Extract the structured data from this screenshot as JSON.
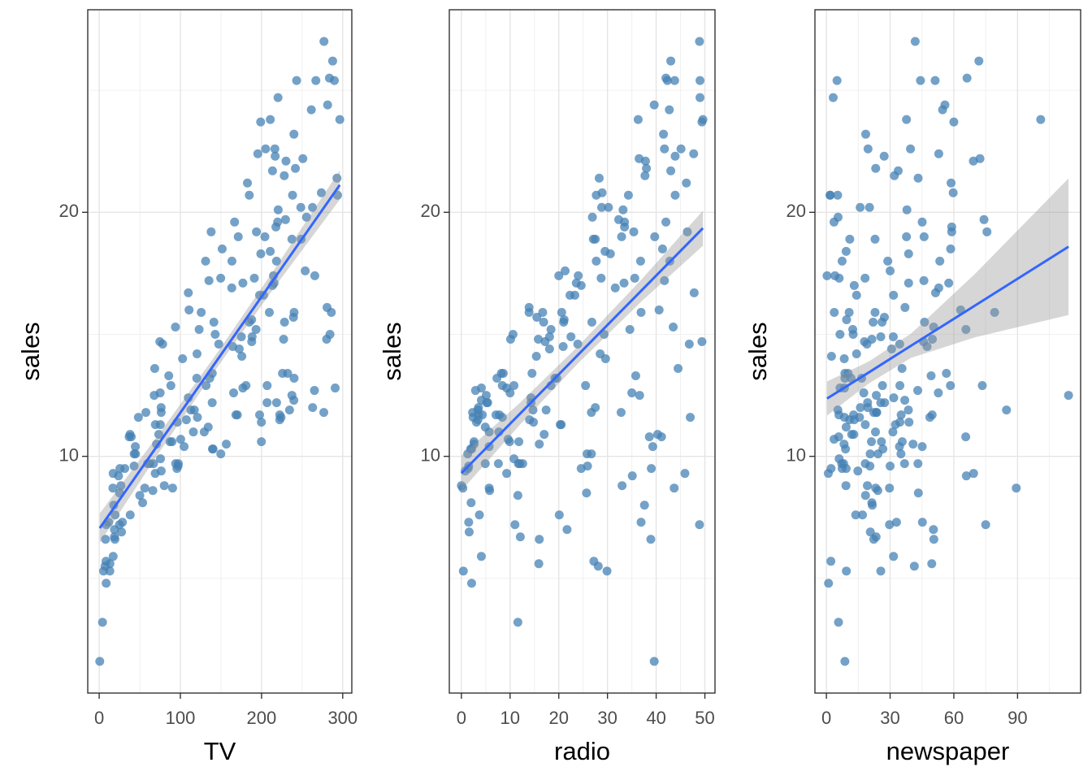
{
  "chart_data": [
    {
      "type": "scatter",
      "xlabel": "TV",
      "ylabel": "sales",
      "color": "#4682b4",
      "line_color": "#3366ff",
      "band_color": "#999999",
      "grid": true,
      "xlim": [
        -14.1,
        311.2
      ],
      "ylim": [
        0.3,
        28.3
      ],
      "xticks": [
        0,
        100,
        200,
        300
      ],
      "yticks": [
        10,
        20
      ],
      "xminorticks": [
        50,
        150,
        250
      ],
      "yminorticks": [
        5,
        15,
        25
      ],
      "x": [
        230.1,
        44.5,
        17.2,
        151.5,
        180.8,
        8.7,
        57.5,
        120.2,
        8.6,
        199.8,
        66.1,
        214.7,
        23.8,
        97.5,
        204.1,
        195.4,
        67.8,
        281.4,
        69.2,
        147.3,
        218.4,
        237.4,
        13.2,
        228.3,
        62.3,
        262.9,
        142.9,
        240.1,
        248.8,
        70.6,
        292.9,
        112.9,
        97.2,
        265.6,
        95.7,
        290.7,
        266.9,
        74.7,
        43.1,
        228,
        202.5,
        177,
        293.6,
        206.9,
        25.1,
        175.1,
        89.7,
        239.9,
        227.2,
        66.9,
        199.8,
        100.4,
        216.4,
        182.6,
        262.7,
        198.9,
        7.3,
        136.2,
        210.8,
        210.7,
        53.5,
        261.3,
        239.3,
        102.7,
        131.1,
        69,
        31.5,
        139.3,
        237.4,
        216.8,
        199.1,
        109.8,
        26.8,
        129.4,
        213.4,
        16.9,
        27.5,
        120.5,
        5.4,
        116,
        76.4,
        239.8,
        75.3,
        68.4,
        213.5,
        193.2,
        76.3,
        110.7,
        88.3,
        109.8,
        134.3,
        28.6,
        217.7,
        250.9,
        107.4,
        163.3,
        197.6,
        184.9,
        289.7,
        135.2,
        222.4,
        296.4,
        280.2,
        187.9,
        238.2,
        137.9,
        25,
        90.4,
        13.1,
        255.4,
        225.8,
        241.7,
        175.7,
        209.6,
        78.2,
        75.1,
        139.2,
        76.4,
        125.7,
        19.4,
        141.3,
        18.8,
        224,
        123.1,
        229.5,
        87.2,
        7.8,
        80.2,
        220.3,
        59.6,
        0.7,
        265.2,
        8.4,
        219.8,
        36.9,
        48.3,
        25.6,
        273.7,
        43,
        184.9,
        73.4,
        193.7,
        220.5,
        104.6,
        96.2,
        140.3,
        240.1,
        243.2,
        38,
        44.7,
        280.7,
        121,
        197.6,
        171.3,
        187.8,
        4.1,
        93.9,
        149.8,
        11.7,
        131.7,
        172.5,
        85.7,
        188.4,
        163.5,
        117.2,
        234.5,
        17.9,
        206.8,
        215.4,
        284.3,
        50,
        164.5,
        19.6,
        168.4,
        222.4,
        276.9,
        248.4,
        170.2,
        276.7,
        165.6,
        156.6,
        218.5,
        56.2,
        287.6,
        253.8,
        205,
        139.5,
        191.1,
        286,
        18.7,
        39.5,
        75.5,
        17.2,
        166.8,
        149.7,
        38.2,
        94.2,
        177,
        283.6,
        232.1
      ],
      "values": [
        22.1,
        10.4,
        9.3,
        18.5,
        12.9,
        7.2,
        11.8,
        13.2,
        4.8,
        10.6,
        8.6,
        17.4,
        9.2,
        9.7,
        19,
        22.4,
        12.5,
        24.4,
        11.3,
        14.6,
        18,
        12.5,
        5.6,
        15.5,
        9.7,
        12,
        15,
        15.9,
        18.9,
        10.5,
        21.4,
        11.9,
        9.6,
        17.4,
        9.5,
        12.8,
        25.4,
        14.7,
        10.1,
        21.5,
        16.6,
        17.1,
        20.7,
        12.9,
        8.5,
        14.9,
        10.6,
        23.2,
        14.8,
        9.7,
        11.4,
        10.7,
        22.6,
        21.2,
        20.2,
        23.7,
        5.5,
        13.2,
        23.8,
        18.4,
        8.1,
        24.2,
        15.7,
        14,
        18,
        9.3,
        9.5,
        13.4,
        18.9,
        22.3,
        18.3,
        12.4,
        8.8,
        11,
        17,
        8.7,
        6.9,
        14.2,
        5.3,
        11,
        11.8,
        12.3,
        11.3,
        13.6,
        21.7,
        15.2,
        12,
        16,
        12.9,
        16.7,
        11.2,
        7.3,
        19.4,
        22.2,
        11.5,
        16.9,
        11.7,
        15.5,
        25.4,
        17.2,
        11.7,
        23.8,
        14.8,
        14.7,
        20.7,
        19.2,
        7.2,
        8.7,
        5.3,
        19.8,
        13.4,
        21.8,
        14.1,
        15.9,
        14.6,
        12.6,
        12.2,
        9.4,
        15.9,
        6.6,
        15.5,
        7,
        11.6,
        15.2,
        19.7,
        10.6,
        6.6,
        8.8,
        24.7,
        9.7,
        1.6,
        12.7,
        5.7,
        19.6,
        10.8,
        11.6,
        9.5,
        20.8,
        9.6,
        20.7,
        10.9,
        19.2,
        20.1,
        10.4,
        11.4,
        10.3,
        13.2,
        25.4,
        10.9,
        10.1,
        16.1,
        11.6,
        16.6,
        19,
        15.6,
        3.2,
        15.3,
        10.1,
        7.3,
        12.9,
        14.4,
        13.3,
        14.9,
        18,
        11.9,
        11.9,
        8,
        12.2,
        17.1,
        15,
        8.4,
        14.5,
        7.6,
        11.7,
        11.5,
        27,
        20.2,
        11.7,
        11.8,
        12.6,
        10.5,
        12.2,
        8.7,
        26.2,
        17.6,
        22.6,
        10.3,
        17.3,
        15.9,
        6.7,
        10.8,
        9.9,
        5.9,
        19.6,
        17.3,
        7.6,
        9.7,
        12.8,
        25.5,
        13.4
      ],
      "fit": {
        "x": [
          0.7,
          75,
          147,
          220,
          296.4
        ],
        "values": [
          7.06,
          10.6,
          14.02,
          17.49,
          21.12
        ],
        "lower": [
          6.46,
          10.22,
          13.72,
          17.11,
          20.52
        ],
        "upper": [
          7.66,
          10.98,
          14.32,
          17.87,
          21.72
        ]
      }
    },
    {
      "type": "scatter",
      "xlabel": "radio",
      "ylabel": "sales",
      "color": "#4682b4",
      "line_color": "#3366ff",
      "band_color": "#999999",
      "grid": true,
      "xlim": [
        -2.48,
        52.08
      ],
      "ylim": [
        0.3,
        28.3
      ],
      "xticks": [
        0,
        10,
        20,
        30,
        40,
        50
      ],
      "yticks": [
        10,
        20
      ],
      "xminorticks": [
        5,
        15,
        25,
        35,
        45
      ],
      "yminorticks": [
        5,
        15,
        25
      ],
      "x": [
        37.8,
        39.3,
        45.9,
        41.3,
        10.8,
        48.9,
        32.8,
        19.6,
        2.1,
        2.6,
        5.8,
        24,
        35.1,
        7.6,
        32.9,
        47.7,
        36.6,
        39.6,
        20.5,
        23.9,
        27.7,
        5.1,
        15.9,
        16.9,
        12.6,
        3.5,
        29.3,
        16.7,
        27.1,
        16,
        28.3,
        17.4,
        1.5,
        20,
        1.4,
        4.1,
        43.8,
        49.4,
        26.7,
        37.7,
        22.3,
        33.4,
        27.7,
        8.4,
        25.7,
        22.5,
        9.9,
        41.5,
        15.8,
        11.7,
        3.1,
        9.6,
        41.7,
        46.2,
        28.8,
        49.4,
        28.1,
        19.2,
        49.6,
        29.5,
        2,
        42.7,
        15.5,
        29.6,
        42.8,
        9.3,
        24.6,
        14.5,
        27.5,
        43.9,
        30.6,
        14.3,
        33,
        5.7,
        24.6,
        43.7,
        1.6,
        28.5,
        29.9,
        7.7,
        26.7,
        4.1,
        20.3,
        44.5,
        43,
        18.4,
        27.5,
        40.6,
        25.5,
        47.8,
        4.9,
        1.5,
        33.5,
        36.5,
        14,
        31.6,
        3.5,
        21,
        42.3,
        41.7,
        4.3,
        36.3,
        10.1,
        17.2,
        34.3,
        46.4,
        11,
        0.3,
        0.4,
        26.9,
        8.2,
        38,
        15.4,
        20.6,
        46.8,
        35,
        14.3,
        0.8,
        36.9,
        16,
        26.8,
        21.7,
        2.4,
        34.6,
        32.3,
        11.8,
        38.9,
        0,
        49,
        12,
        39.6,
        2.9,
        27.2,
        33.5,
        38.6,
        47,
        39,
        28.9,
        25.9,
        43.9,
        17,
        35.4,
        33.2,
        5.7,
        14.8,
        1.9,
        7.3,
        49,
        40.3,
        25.8,
        13.9,
        8.4,
        23.3,
        39.7,
        21.1,
        11.6,
        43.5,
        1.3,
        36.9,
        18.4,
        18.1,
        35.8,
        18.1,
        36.8,
        14.7,
        3.4,
        37.6,
        5.2,
        23.6,
        10.6,
        11.6,
        20.9,
        20.1,
        7.1,
        3.4,
        48.9,
        30.2,
        7.8,
        2.3,
        10,
        2.6,
        5.4,
        5.7,
        43,
        21.3,
        45.1,
        2.1,
        28.7,
        13.9,
        12.1,
        41.1,
        10.8,
        4.1,
        42,
        35.6,
        3.7,
        4.9,
        9.3,
        42,
        8.6
      ],
      "values": [
        22.1,
        10.4,
        9.3,
        18.5,
        12.9,
        7.2,
        11.8,
        13.2,
        4.8,
        10.6,
        8.6,
        17.4,
        9.2,
        9.7,
        19,
        22.4,
        12.5,
        24.4,
        11.3,
        14.6,
        18,
        12.5,
        5.6,
        15.5,
        9.7,
        12,
        15,
        15.9,
        18.9,
        10.5,
        21.4,
        11.9,
        9.6,
        17.4,
        9.5,
        12.8,
        25.4,
        14.7,
        10.1,
        21.5,
        16.6,
        17.1,
        20.7,
        12.9,
        8.5,
        14.9,
        10.6,
        23.2,
        14.8,
        9.7,
        11.4,
        10.7,
        22.6,
        21.2,
        20.2,
        23.7,
        5.5,
        13.2,
        23.8,
        18.4,
        8.1,
        24.2,
        15.7,
        14,
        18,
        9.3,
        9.5,
        13.4,
        18.9,
        22.3,
        18.3,
        12.4,
        8.8,
        11,
        17,
        8.7,
        6.9,
        14.2,
        5.3,
        11,
        11.8,
        12.3,
        11.3,
        13.6,
        21.7,
        15.2,
        12,
        16,
        12.9,
        16.7,
        11.2,
        7.3,
        19.4,
        22.2,
        11.5,
        16.9,
        11.7,
        15.5,
        25.4,
        17.2,
        11.7,
        23.8,
        14.8,
        14.7,
        20.7,
        19.2,
        7.2,
        8.7,
        5.3,
        19.8,
        13.4,
        21.8,
        14.1,
        15.9,
        14.6,
        12.6,
        12.2,
        9.4,
        15.9,
        6.6,
        15.5,
        7,
        11.6,
        15.2,
        19.7,
        10.6,
        6.6,
        8.8,
        24.7,
        9.7,
        1.6,
        12.7,
        5.7,
        19.6,
        10.8,
        11.6,
        9.5,
        20.8,
        9.6,
        20.7,
        10.9,
        19.2,
        20.1,
        10.4,
        11.4,
        10.3,
        13.2,
        25.4,
        10.9,
        10.1,
        16.1,
        11.6,
        16.6,
        19,
        15.6,
        3.2,
        15.3,
        10.1,
        7.3,
        12.9,
        14.4,
        13.3,
        14.9,
        18,
        11.9,
        11.9,
        8,
        12.2,
        17.1,
        15,
        8.4,
        14.5,
        7.6,
        11.7,
        11.5,
        27,
        20.2,
        11.7,
        11.8,
        12.6,
        10.5,
        12.2,
        8.7,
        26.2,
        17.6,
        22.6,
        10.3,
        17.3,
        15.9,
        6.7,
        10.8,
        9.9,
        5.9,
        19.6,
        17.3,
        7.6,
        9.7,
        12.8,
        25.5,
        13.4
      ],
      "fit": {
        "x": [
          0,
          12,
          24,
          37,
          49.6
        ],
        "values": [
          9.31,
          11.74,
          14.17,
          16.8,
          19.35
        ],
        "lower": [
          8.59,
          11.29,
          13.82,
          16.35,
          18.63
        ],
        "upper": [
          10.03,
          12.19,
          14.52,
          17.25,
          20.07
        ]
      }
    },
    {
      "type": "scatter",
      "xlabel": "newspaper",
      "ylabel": "sales",
      "color": "#4682b4",
      "line_color": "#3366ff",
      "band_color": "#999999",
      "grid": true,
      "xlim": [
        -5.4,
        119.7
      ],
      "ylim": [
        0.3,
        28.3
      ],
      "xticks": [
        0,
        30,
        60,
        90
      ],
      "yticks": [
        10,
        20
      ],
      "xminorticks": [
        15,
        45,
        75,
        105
      ],
      "yminorticks": [
        5,
        15,
        25
      ],
      "x": [
        69.2,
        45.1,
        69.3,
        58.5,
        58.4,
        75,
        23.5,
        11.6,
        1,
        21.2,
        24.2,
        4,
        65.9,
        7.2,
        46,
        52.9,
        114,
        55.8,
        18.3,
        19.1,
        53.4,
        23.5,
        49.6,
        26.2,
        18.3,
        19.5,
        12.6,
        22.9,
        22.9,
        40.8,
        43.2,
        38.6,
        30,
        0.3,
        7.4,
        8.5,
        5,
        45.7,
        35.1,
        32,
        31.6,
        38.7,
        1.8,
        26.4,
        43.3,
        31.5,
        35.7,
        18.5,
        49.9,
        36.8,
        34.6,
        3.6,
        39.6,
        58.7,
        15.9,
        60,
        41.4,
        16.6,
        37.7,
        9.3,
        21.4,
        54.7,
        27.3,
        8.4,
        28.9,
        0.9,
        2.2,
        10.2,
        11,
        27.2,
        38.7,
        31.7,
        19.3,
        31.3,
        13.1,
        89.4,
        20.7,
        14.2,
        9.4,
        23.1,
        22.3,
        36.9,
        32.5,
        35.6,
        33.8,
        65.7,
        16,
        63.2,
        73.4,
        51.4,
        9.3,
        33,
        59,
        72.3,
        10.9,
        52.9,
        5.9,
        22,
        51.2,
        45.9,
        49.8,
        100.9,
        21.4,
        17.9,
        5.3,
        59,
        29.7,
        23.2,
        25.6,
        5.5,
        56.5,
        23.2,
        2.4,
        10.7,
        34.5,
        52.7,
        25.6,
        14.8,
        79.2,
        22.3,
        46.2,
        50.4,
        15.6,
        12.4,
        74.2,
        25.9,
        50.6,
        9.2,
        3.2,
        43.1,
        8.7,
        43,
        2.1,
        45.1,
        65.6,
        8.5,
        9.3,
        59.7,
        20.5,
        1.7,
        12.9,
        75.6,
        37.9,
        34.4,
        38.9,
        9,
        8.7,
        44.3,
        11.9,
        20.6,
        37,
        48.7,
        14.2,
        37.7,
        9.5,
        5.7,
        50.5,
        24.3,
        45.2,
        34.6,
        30.7,
        49.3,
        25.6,
        7.4,
        5.4,
        84.8,
        21.6,
        19.4,
        57.6,
        6.4,
        18.4,
        47.4,
        17,
        12.8,
        13.1,
        41.8,
        20.3,
        35.2,
        23.7,
        17.6,
        8.3,
        27.4,
        29.7,
        71.8,
        30,
        19.6,
        26.6,
        18.2,
        3.7,
        23.4,
        5.8,
        6,
        31.6,
        3.6,
        6,
        13.8,
        8.1,
        6.4,
        66.2,
        8.7
      ],
      "values": [
        22.1,
        10.4,
        9.3,
        18.5,
        12.9,
        7.2,
        11.8,
        13.2,
        4.8,
        10.6,
        8.6,
        17.4,
        9.2,
        9.7,
        19,
        22.4,
        12.5,
        24.4,
        11.3,
        14.6,
        18,
        12.5,
        5.6,
        15.5,
        9.7,
        12,
        15,
        15.9,
        18.9,
        10.5,
        21.4,
        11.9,
        9.6,
        17.4,
        9.5,
        12.8,
        25.4,
        14.7,
        10.1,
        21.5,
        16.6,
        17.1,
        20.7,
        12.9,
        8.5,
        14.9,
        10.6,
        23.2,
        14.8,
        9.7,
        11.4,
        10.7,
        22.6,
        21.2,
        20.2,
        23.7,
        5.5,
        13.2,
        23.8,
        18.4,
        8.1,
        24.2,
        15.7,
        14,
        18,
        9.3,
        9.5,
        13.4,
        18.9,
        22.3,
        18.3,
        12.4,
        8.8,
        11,
        17,
        8.7,
        6.9,
        14.2,
        5.3,
        11,
        11.8,
        12.3,
        11.3,
        13.6,
        21.7,
        15.2,
        12,
        16,
        12.9,
        16.7,
        11.2,
        7.3,
        19.4,
        22.2,
        11.5,
        16.9,
        11.7,
        15.5,
        25.4,
        17.2,
        11.7,
        23.8,
        14.8,
        14.7,
        20.7,
        19.2,
        7.2,
        8.7,
        5.3,
        19.8,
        13.4,
        21.8,
        14.1,
        15.9,
        14.6,
        12.6,
        12.2,
        9.4,
        15.9,
        6.6,
        15.5,
        7,
        11.6,
        15.2,
        19.7,
        10.6,
        6.6,
        8.8,
        24.7,
        9.7,
        1.6,
        12.7,
        5.7,
        19.6,
        10.8,
        11.6,
        9.5,
        20.8,
        9.6,
        20.7,
        10.9,
        19.2,
        20.1,
        10.4,
        11.4,
        10.3,
        13.2,
        25.4,
        10.9,
        10.1,
        16.1,
        11.6,
        16.6,
        19,
        15.6,
        3.2,
        15.3,
        10.1,
        7.3,
        12.9,
        14.4,
        13.3,
        14.9,
        18,
        11.9,
        11.9,
        8,
        12.2,
        17.1,
        15,
        8.4,
        14.5,
        7.6,
        11.7,
        11.5,
        27,
        20.2,
        11.7,
        11.8,
        12.6,
        10.5,
        12.2,
        8.7,
        26.2,
        17.6,
        22.6,
        10.3,
        17.3,
        15.9,
        6.7,
        10.8,
        9.9,
        5.9,
        19.6,
        17.3,
        7.6,
        9.7,
        12.8,
        25.5,
        13.4
      ],
      "fit": {
        "x": [
          0.3,
          20,
          40,
          70,
          114
        ],
        "values": [
          12.37,
          13.44,
          14.54,
          16.18,
          18.59
        ],
        "lower": [
          11.67,
          12.99,
          14.04,
          14.88,
          15.79
        ],
        "upper": [
          13.07,
          13.89,
          15.04,
          17.48,
          21.39
        ]
      }
    }
  ]
}
